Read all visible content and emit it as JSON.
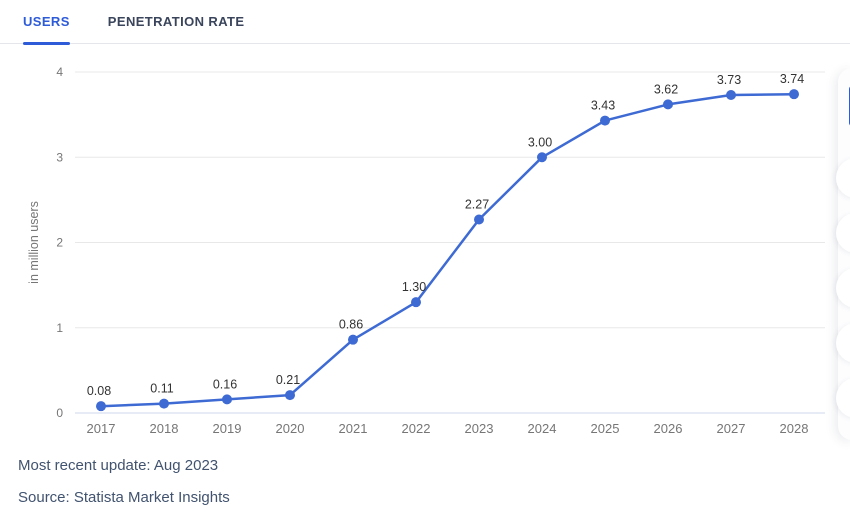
{
  "tabs": [
    {
      "label": "USERS",
      "active": true
    },
    {
      "label": "PENETRATION RATE",
      "active": false
    }
  ],
  "chart_data": {
    "type": "line",
    "title": "",
    "categories": [
      "2017",
      "2018",
      "2019",
      "2020",
      "2021",
      "2022",
      "2023",
      "2024",
      "2025",
      "2026",
      "2027",
      "2028"
    ],
    "values": [
      0.08,
      0.11,
      0.16,
      0.21,
      0.86,
      1.3,
      2.27,
      3.0,
      3.43,
      3.62,
      3.73,
      3.74
    ],
    "point_labels": [
      "0.08",
      "0.11",
      "0.16",
      "0.21",
      "0.86",
      "1.30",
      "2.27",
      "3.00",
      "3.43",
      "3.62",
      "3.73",
      "3.74"
    ],
    "xlabel": "",
    "ylabel": "in million users",
    "ylim": [
      0,
      4
    ],
    "yticks": [
      "0",
      "1",
      "2",
      "3",
      "4"
    ],
    "grid": true,
    "legend_position": "none",
    "line_color": "#3e6ad3",
    "point_color": "#3e6ad3",
    "grid_color": "#e8e8e8",
    "baseline_color": "#ccd7ec",
    "axis_text_color": "#767676",
    "data_label_color": "#333333"
  },
  "footer": {
    "update": "Most recent update: Aug 2023",
    "source": "Source: Statista Market Insights"
  },
  "colors": {
    "accent_blue": "#2e5bd7",
    "inactive_tab": "#3a455c",
    "footer_text": "#41536f"
  }
}
